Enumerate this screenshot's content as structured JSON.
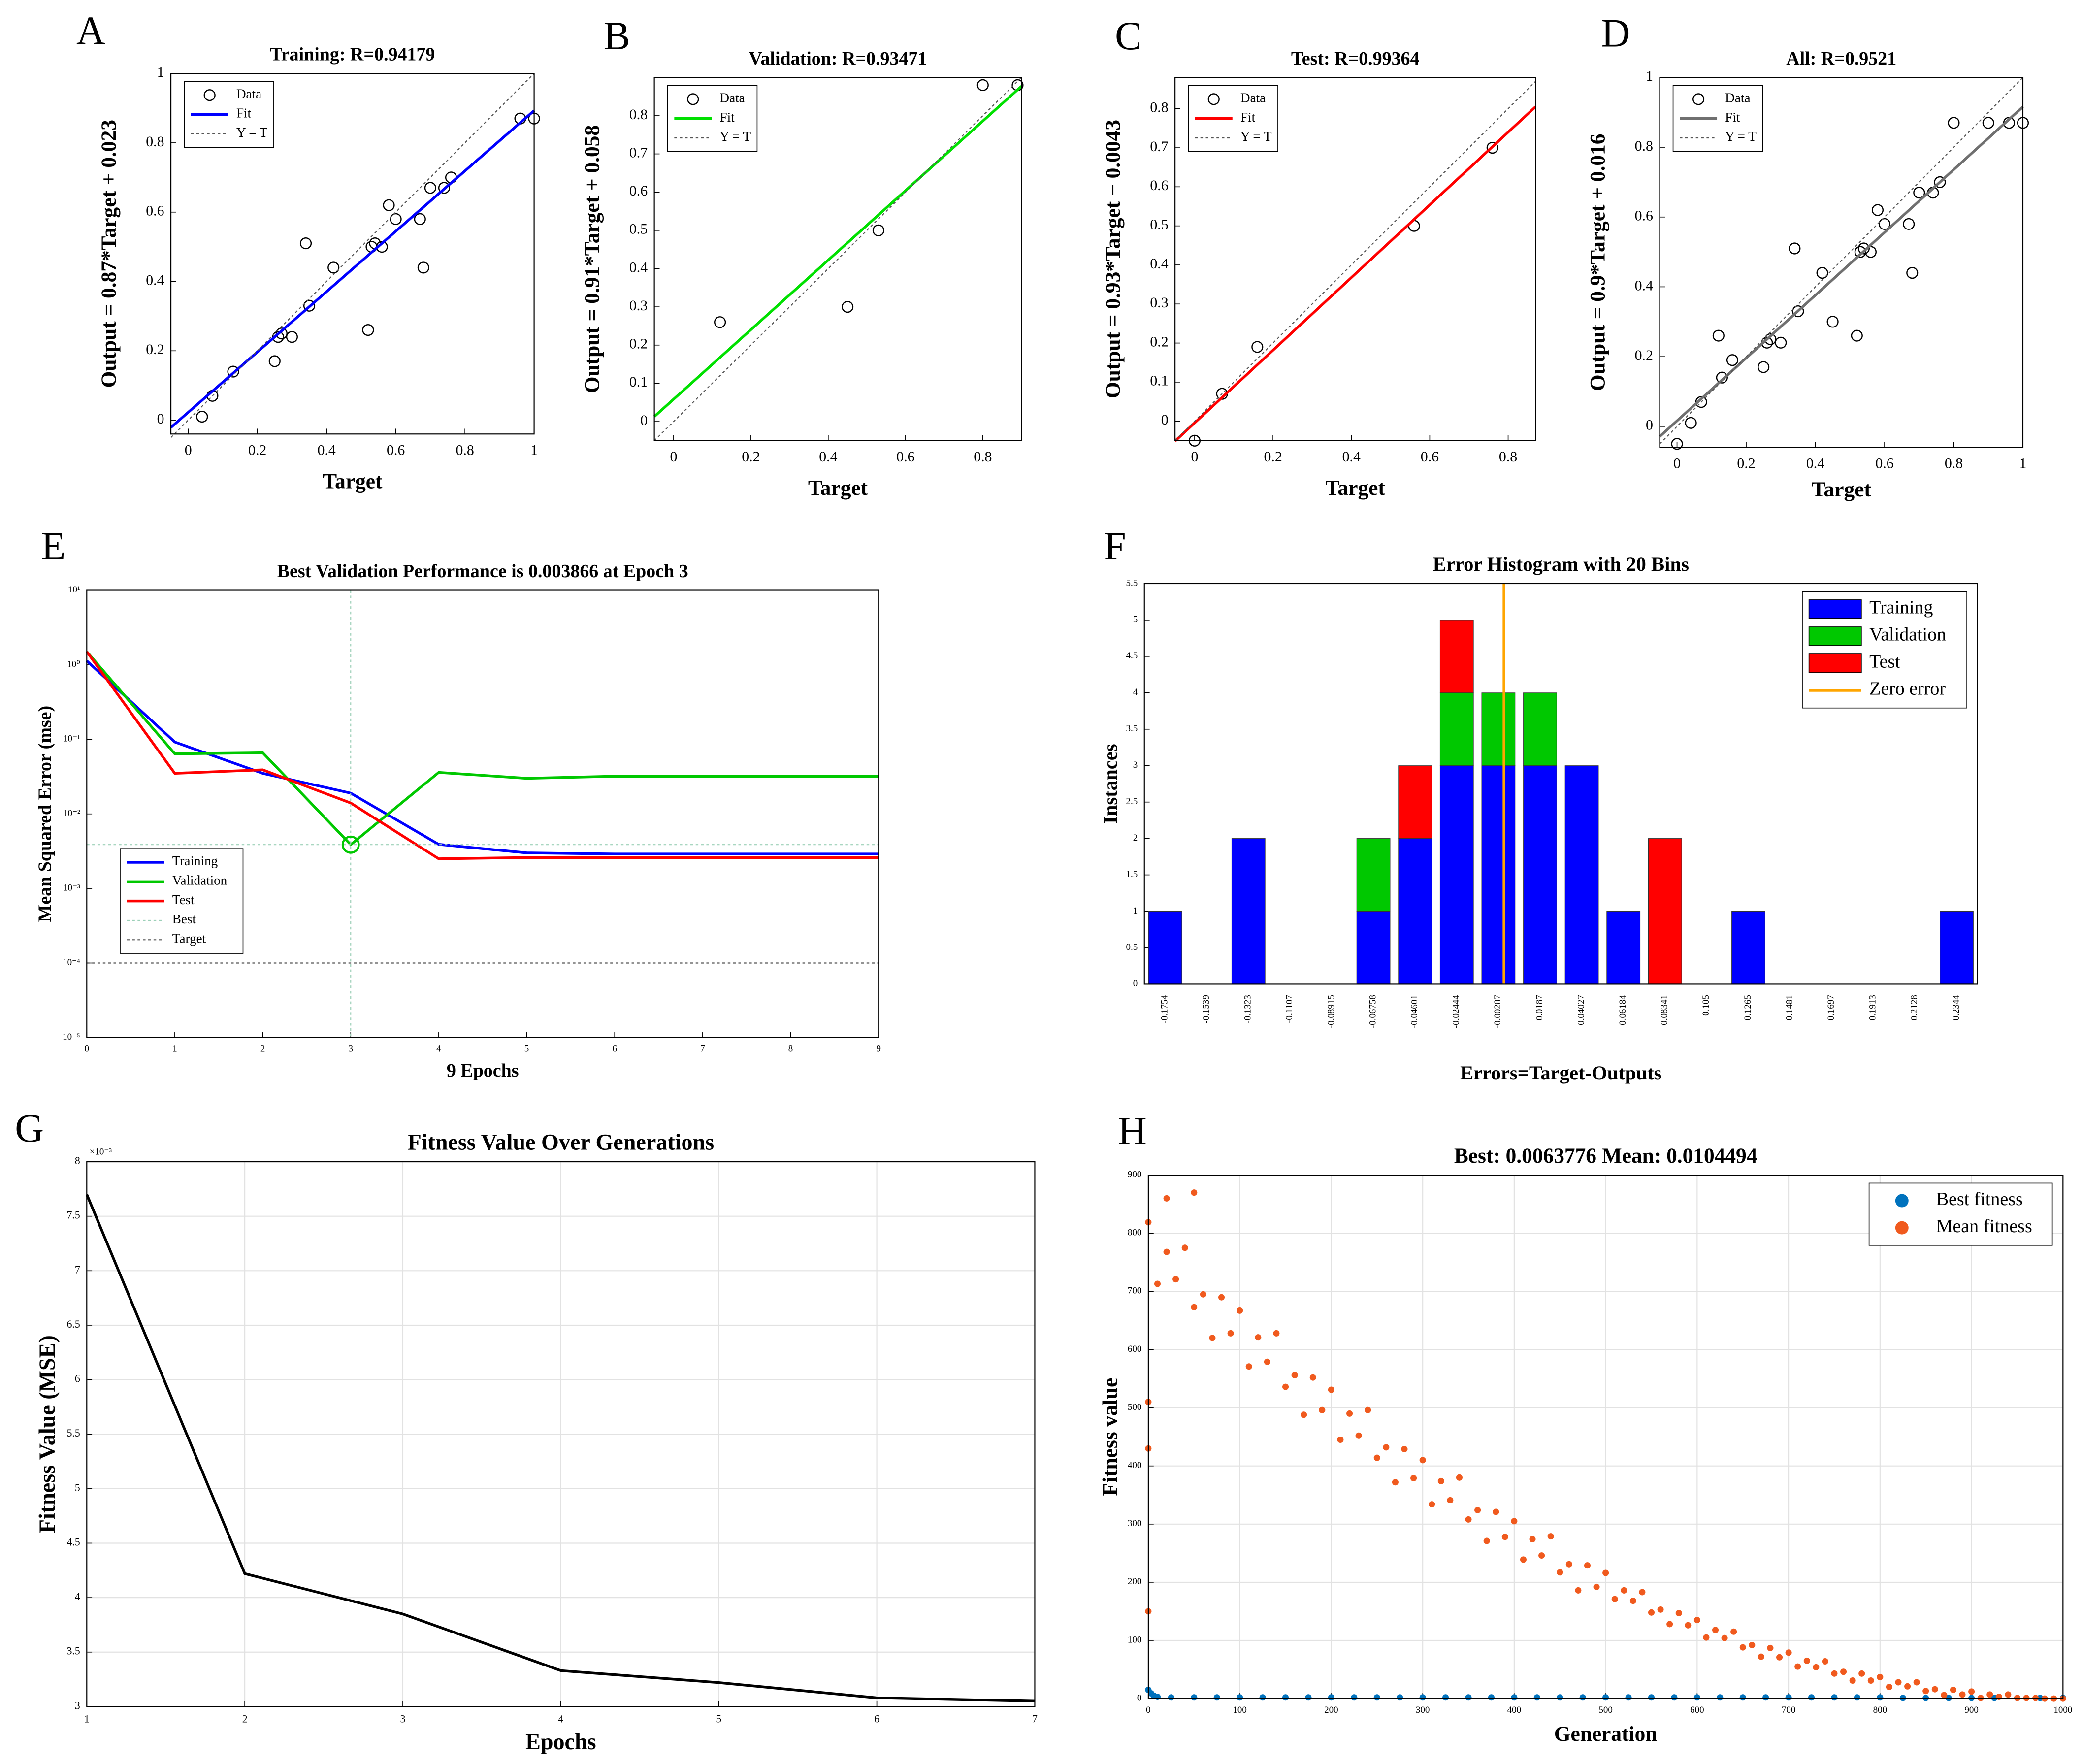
{
  "chart_data": [
    {
      "type": "scatter",
      "label": "A",
      "title": "Training: R=0.94179",
      "xlabel": "Target",
      "ylabel": "Output = 0.87*Target + 0.023",
      "xlim": [
        -0.05,
        1
      ],
      "ylim": [
        -0.04,
        1
      ],
      "xticks": [
        0,
        0.2,
        0.4,
        0.6,
        0.8,
        1
      ],
      "yticks": [
        0,
        0.2,
        0.4,
        0.6,
        0.8,
        1
      ],
      "grid": false,
      "legend": "upper left",
      "series": [
        {
          "name": "Data",
          "color": "#000000",
          "mode": "circles",
          "x": [
            0.04,
            0.07,
            0.13,
            0.25,
            0.26,
            0.27,
            0.3,
            0.34,
            0.35,
            0.42,
            0.52,
            0.53,
            0.54,
            0.56,
            0.58,
            0.6,
            0.67,
            0.68,
            0.7,
            0.74,
            0.76,
            0.96,
            1.0
          ],
          "values": [
            0.01,
            0.07,
            0.14,
            0.17,
            0.24,
            0.25,
            0.24,
            0.51,
            0.33,
            0.44,
            0.26,
            0.5,
            0.51,
            0.5,
            0.62,
            0.58,
            0.58,
            0.44,
            0.67,
            0.67,
            0.7,
            0.87,
            0.87
          ]
        },
        {
          "name": "Fit",
          "color": "#0000ff",
          "mode": "line",
          "x": [
            -0.05,
            1
          ],
          "values": [
            -0.021,
            0.893
          ]
        },
        {
          "name": "Y = T",
          "color": "#555555",
          "mode": "dotted",
          "x": [
            -0.05,
            1
          ],
          "values": [
            -0.05,
            1
          ]
        }
      ]
    },
    {
      "type": "scatter",
      "label": "B",
      "title": "Validation: R=0.93471",
      "xlabel": "Target",
      "ylabel": "Output = 0.91*Target + 0.058",
      "xlim": [
        -0.05,
        0.9
      ],
      "ylim": [
        -0.05,
        0.9
      ],
      "xticks": [
        0,
        0.2,
        0.4,
        0.6,
        0.8
      ],
      "yticks": [
        0,
        0.1,
        0.2,
        0.3,
        0.4,
        0.5,
        0.6,
        0.7,
        0.8
      ],
      "grid": false,
      "legend": "upper left",
      "series": [
        {
          "name": "Data",
          "color": "#000000",
          "mode": "circles",
          "x": [
            0.12,
            0.45,
            0.53,
            0.8,
            0.89
          ],
          "values": [
            0.26,
            0.3,
            0.5,
            0.88,
            0.88
          ]
        },
        {
          "name": "Fit",
          "color": "#00e000",
          "mode": "line",
          "x": [
            -0.05,
            0.9
          ],
          "values": [
            0.013,
            0.877
          ]
        },
        {
          "name": "Y = T",
          "color": "#555555",
          "mode": "dotted",
          "x": [
            -0.05,
            0.9
          ],
          "values": [
            -0.05,
            0.9
          ]
        }
      ]
    },
    {
      "type": "scatter",
      "label": "C",
      "title": "Test: R=0.99364",
      "xlabel": "Target",
      "ylabel": "Output = 0.93*Target − 0.0043",
      "xlim": [
        -0.05,
        0.87
      ],
      "ylim": [
        -0.05,
        0.88
      ],
      "xticks": [
        0,
        0.2,
        0.4,
        0.6,
        0.8
      ],
      "yticks": [
        0,
        0.1,
        0.2,
        0.3,
        0.4,
        0.5,
        0.6,
        0.7,
        0.8
      ],
      "grid": false,
      "legend": "upper left",
      "series": [
        {
          "name": "Data",
          "color": "#000000",
          "mode": "circles",
          "x": [
            0,
            0.07,
            0.16,
            0.56,
            0.76
          ],
          "values": [
            -0.05,
            0.07,
            0.19,
            0.5,
            0.7
          ]
        },
        {
          "name": "Fit",
          "color": "#ff0000",
          "mode": "line",
          "x": [
            -0.05,
            0.87
          ],
          "values": [
            -0.051,
            0.805
          ]
        },
        {
          "name": "Y = T",
          "color": "#555555",
          "mode": "dotted",
          "x": [
            -0.05,
            0.87
          ],
          "values": [
            -0.05,
            0.87
          ]
        }
      ]
    },
    {
      "type": "scatter",
      "label": "D",
      "title": "All: R=0.9521",
      "xlabel": "Target",
      "ylabel": "Output = 0.9*Target + 0.016",
      "xlim": [
        -0.05,
        1
      ],
      "ylim": [
        -0.06,
        1
      ],
      "xticks": [
        0,
        0.2,
        0.4,
        0.6,
        0.8,
        1
      ],
      "yticks": [
        0,
        0.2,
        0.4,
        0.6,
        0.8,
        1
      ],
      "grid": false,
      "legend": "upper left",
      "series": [
        {
          "name": "Data",
          "color": "#000000",
          "mode": "circles",
          "x": [
            0,
            0.04,
            0.07,
            0.12,
            0.13,
            0.16,
            0.25,
            0.26,
            0.27,
            0.3,
            0.34,
            0.35,
            0.42,
            0.45,
            0.52,
            0.53,
            0.54,
            0.56,
            0.58,
            0.6,
            0.67,
            0.68,
            0.7,
            0.74,
            0.76,
            0.8,
            0.9,
            0.96,
            1.0
          ],
          "values": [
            -0.05,
            0.01,
            0.07,
            0.26,
            0.14,
            0.19,
            0.17,
            0.24,
            0.25,
            0.24,
            0.51,
            0.33,
            0.44,
            0.3,
            0.26,
            0.5,
            0.51,
            0.5,
            0.62,
            0.58,
            0.58,
            0.44,
            0.67,
            0.67,
            0.7,
            0.87,
            0.87,
            0.87,
            0.87
          ]
        },
        {
          "name": "Fit",
          "color": "#707070",
          "mode": "line",
          "x": [
            -0.05,
            1
          ],
          "values": [
            -0.029,
            0.916
          ]
        },
        {
          "name": "Y = T",
          "color": "#555555",
          "mode": "dotted",
          "x": [
            -0.05,
            1
          ],
          "values": [
            -0.05,
            1
          ]
        }
      ]
    },
    {
      "type": "line",
      "label": "E",
      "title": "Best Validation Performance is 0.003866 at Epoch 3",
      "xlabel": "9 Epochs",
      "ylabel": "Mean Squared Error (mse)",
      "xlim": [
        0,
        9
      ],
      "ylim": [
        1e-05,
        10
      ],
      "ylog": true,
      "xticks": [
        0,
        1,
        2,
        3,
        4,
        5,
        6,
        7,
        8,
        9
      ],
      "yticks": [
        {
          "value": 10,
          "label": "10¹"
        },
        {
          "value": 1,
          "label": "10⁰"
        },
        {
          "value": 0.1,
          "label": "10⁻¹"
        },
        {
          "value": 0.01,
          "label": "10⁻²"
        },
        {
          "value": 0.001,
          "label": "10⁻³"
        },
        {
          "value": 0.0001,
          "label": "10⁻⁴"
        },
        {
          "value": 1e-05,
          "label": "10⁻⁵"
        }
      ],
      "grid": false,
      "legend": "lower left",
      "series": [
        {
          "name": "Training",
          "color": "#0000ff",
          "mode": "line",
          "x": [
            0,
            1,
            2,
            3,
            4,
            5,
            6,
            7,
            8,
            9
          ],
          "values": [
            1.13,
            0.092,
            0.035,
            0.019,
            0.0039,
            0.003,
            0.0029,
            0.0029,
            0.0029,
            0.0029
          ]
        },
        {
          "name": "Validation",
          "color": "#00c800",
          "mode": "line",
          "x": [
            0,
            1,
            2,
            3,
            4,
            5,
            6,
            7,
            8,
            9
          ],
          "values": [
            1.5,
            0.064,
            0.066,
            0.003866,
            0.036,
            0.03,
            0.032,
            0.032,
            0.032,
            0.032
          ]
        },
        {
          "name": "Test",
          "color": "#ff0000",
          "mode": "line",
          "x": [
            0,
            1,
            2,
            3,
            4,
            5,
            6,
            7,
            8,
            9
          ],
          "values": [
            1.5,
            0.035,
            0.039,
            0.014,
            0.0025,
            0.0026,
            0.0026,
            0.0026,
            0.0026,
            0.0026
          ]
        },
        {
          "name": "Best",
          "color": "#9cd0b8",
          "marker_color": "#00c800",
          "mode": "crosshair",
          "x": [
            3
          ],
          "values": [
            0.003866
          ]
        },
        {
          "name": "Target",
          "color": "#555555",
          "mode": "dotted",
          "x": [
            0,
            9
          ],
          "values": [
            0.0001,
            0.0001
          ]
        }
      ]
    },
    {
      "type": "histogram",
      "label": "F",
      "title": "Error Histogram with 20 Bins",
      "xlabel": "Errors=Target-Outputs",
      "ylabel": "Instances",
      "categories": [
        "-0.1754",
        "-0.1539",
        "-0.1323",
        "-0.1107",
        "-0.08915",
        "-0.06758",
        "-0.04601",
        "-0.02444",
        "-0.00287",
        "0.0187",
        "0.04027",
        "0.06184",
        "0.08341",
        "0.105",
        "0.1265",
        "0.1481",
        "0.1697",
        "0.1913",
        "0.2128",
        "0.2344"
      ],
      "ylim": [
        0,
        5.5
      ],
      "yticks": [
        0,
        0.5,
        1,
        1.5,
        2,
        2.5,
        3,
        3.5,
        4,
        4.5,
        5,
        5.5
      ],
      "grid": false,
      "legend": "upper right",
      "series": [
        {
          "name": "Training",
          "color": "#0000ff",
          "mode": "bars",
          "values": [
            1,
            0,
            2,
            0,
            0,
            1,
            2,
            3,
            3,
            3,
            3,
            1,
            0,
            0,
            1,
            0,
            0,
            0,
            0,
            1
          ]
        },
        {
          "name": "Validation",
          "color": "#00c800",
          "mode": "bars",
          "values": [
            0,
            0,
            0,
            0,
            0,
            1,
            0,
            1,
            1,
            1,
            0,
            0,
            0,
            0,
            0,
            0,
            0,
            0,
            0,
            0
          ]
        },
        {
          "name": "Test",
          "color": "#ff0000",
          "mode": "bars",
          "values": [
            0,
            0,
            0,
            0,
            0,
            0,
            1,
            1,
            0,
            0,
            0,
            0,
            2,
            0,
            0,
            0,
            0,
            0,
            0,
            0
          ]
        },
        {
          "name": "Zero error",
          "color": "#ffa500",
          "mode": "vline",
          "x": [
            0
          ]
        }
      ]
    },
    {
      "type": "line",
      "label": "G",
      "title": "Fitness Value Over Generations",
      "xlabel": "Epochs",
      "ylabel": "Fitness Value (MSE)",
      "exponent_label": "×10⁻³",
      "xlim": [
        1,
        7
      ],
      "ylim": [
        3,
        8
      ],
      "xticks": [
        1,
        2,
        3,
        4,
        5,
        6,
        7
      ],
      "yticks": [
        3,
        3.5,
        4,
        4.5,
        5,
        5.5,
        6,
        6.5,
        7,
        7.5,
        8
      ],
      "grid": true,
      "series": [
        {
          "name": "Fitness",
          "color": "#000000",
          "mode": "line",
          "x": [
            1,
            2,
            3,
            4,
            5,
            6,
            7
          ],
          "values": [
            7.7,
            4.22,
            3.85,
            3.33,
            3.22,
            3.08,
            3.05
          ]
        }
      ]
    },
    {
      "type": "scatter",
      "label": "H",
      "title": "Best: 0.0063776 Mean: 0.0104494",
      "xlabel": "Generation",
      "ylabel": "Fitness value",
      "xlim": [
        0,
        1000
      ],
      "ylim": [
        0,
        900
      ],
      "xticks": [
        0,
        100,
        200,
        300,
        400,
        500,
        600,
        700,
        800,
        900,
        1000
      ],
      "yticks": [
        0,
        100,
        200,
        300,
        400,
        500,
        600,
        700,
        800,
        900
      ],
      "grid": true,
      "legend": "upper right",
      "series": [
        {
          "name": "Best fitness",
          "color": "#0072bd",
          "mode": "dots",
          "x": [
            0,
            3,
            6,
            10,
            25,
            50,
            75,
            100,
            125,
            150,
            175,
            200,
            225,
            250,
            275,
            300,
            325,
            350,
            375,
            400,
            425,
            450,
            475,
            500,
            525,
            550,
            575,
            600,
            625,
            650,
            675,
            700,
            725,
            750,
            775,
            800,
            825,
            850,
            875,
            900,
            925,
            950,
            975,
            1000
          ],
          "values": [
            15,
            9,
            5,
            3,
            2,
            2,
            2,
            2,
            2,
            2,
            2,
            2,
            2,
            2,
            2,
            2,
            2,
            2,
            2,
            2,
            2,
            2,
            2,
            2,
            2,
            2,
            2,
            2,
            2,
            2,
            2,
            2,
            2,
            2,
            2,
            2,
            1,
            1,
            1,
            1,
            1,
            1,
            1,
            1
          ]
        },
        {
          "name": "Mean fitness",
          "color": "#f05a1e",
          "mode": "dots",
          "x": [
            0,
            0,
            0,
            20,
            50,
            0,
            10,
            20,
            30,
            40,
            50,
            60,
            70,
            80,
            90,
            100,
            110,
            120,
            130,
            140,
            150,
            160,
            170,
            180,
            190,
            200,
            210,
            220,
            230,
            240,
            250,
            260,
            270,
            280,
            290,
            300,
            310,
            320,
            330,
            340,
            350,
            360,
            370,
            380,
            390,
            400,
            410,
            420,
            430,
            440,
            450,
            460,
            470,
            480,
            490,
            500,
            510,
            520,
            530,
            540,
            550,
            560,
            570,
            580,
            590,
            600,
            610,
            620,
            630,
            640,
            650,
            660,
            670,
            680,
            690,
            700,
            710,
            720,
            730,
            740,
            750,
            760,
            770,
            780,
            790,
            800,
            810,
            820,
            830,
            840,
            850,
            860,
            870,
            880,
            890,
            900,
            910,
            920,
            930,
            940,
            950,
            960,
            970,
            980,
            990,
            1000
          ],
          "values": [
            150,
            430,
            510,
            860,
            870,
            819,
            713,
            768,
            721,
            775,
            673,
            695,
            620,
            690,
            628,
            667,
            571,
            621,
            579,
            628,
            536,
            556,
            488,
            552,
            496,
            531,
            445,
            490,
            452,
            496,
            414,
            432,
            372,
            429,
            379,
            410,
            334,
            374,
            341,
            380,
            308,
            324,
            271,
            321,
            278,
            305,
            239,
            274,
            246,
            279,
            217,
            231,
            186,
            229,
            192,
            216,
            171,
            186,
            168,
            183,
            148,
            153,
            128,
            147,
            126,
            135,
            105,
            118,
            104,
            115,
            88,
            92,
            72,
            87,
            71,
            79,
            55,
            65,
            54,
            64,
            43,
            46,
            31,
            43,
            31,
            37,
            20,
            28,
            21,
            28,
            13,
            16,
            6,
            15,
            7,
            12,
            1,
            7,
            3,
            7,
            1,
            1,
            1,
            0,
            0,
            0
          ]
        }
      ]
    }
  ]
}
